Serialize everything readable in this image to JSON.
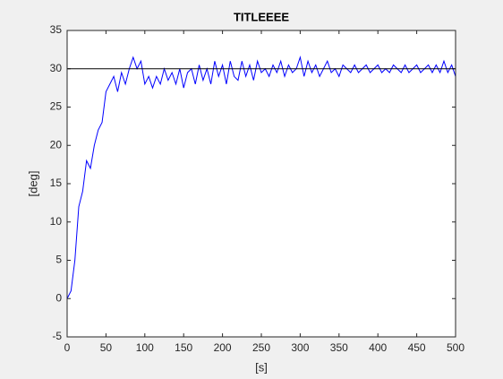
{
  "chart_data": {
    "type": "line",
    "title": "TITLEEEE",
    "x_label": "[s]",
    "y_label": "[deg]",
    "xlim": [
      0,
      500
    ],
    "xticks": [
      0,
      50,
      100,
      150,
      200,
      250,
      300,
      350,
      400,
      450,
      500
    ],
    "ylim": [
      -5,
      35
    ],
    "yticks": [
      -5,
      0,
      5,
      10,
      15,
      20,
      25,
      30,
      35
    ],
    "grid": false,
    "series": [
      {
        "color": "#0000ff",
        "x": [
          0,
          5,
          10,
          15,
          20,
          25,
          30,
          35,
          40,
          45,
          50,
          55,
          60,
          65,
          70,
          75,
          80,
          85,
          90,
          95,
          100,
          105,
          110,
          115,
          120,
          125,
          130,
          135,
          140,
          145,
          150,
          155,
          160,
          165,
          170,
          175,
          180,
          185,
          190,
          195,
          200,
          205,
          210,
          215,
          220,
          225,
          230,
          235,
          240,
          245,
          250,
          255,
          260,
          265,
          270,
          275,
          280,
          285,
          290,
          295,
          300,
          305,
          310,
          315,
          320,
          325,
          330,
          335,
          340,
          345,
          350,
          355,
          360,
          365,
          370,
          375,
          380,
          385,
          390,
          395,
          400,
          405,
          410,
          415,
          420,
          425,
          430,
          435,
          440,
          445,
          450,
          455,
          460,
          465,
          470,
          475,
          480,
          485,
          490,
          495,
          500
        ],
        "values": [
          0,
          1,
          5,
          12,
          14,
          18,
          17,
          20,
          22,
          23,
          27,
          28,
          29,
          27,
          29.5,
          28,
          30,
          31.5,
          30,
          31,
          28,
          29,
          27.5,
          29,
          28,
          30,
          28.5,
          29.5,
          28,
          30,
          27.5,
          29.5,
          30,
          28,
          30.5,
          28.5,
          30,
          28,
          31,
          29,
          30.5,
          28,
          31,
          29,
          28.5,
          31,
          29,
          30.5,
          28.5,
          31,
          29.5,
          30,
          29,
          30.5,
          29.5,
          31,
          29,
          30.5,
          29.5,
          30,
          31.5,
          29,
          31,
          29.5,
          30.5,
          29,
          30,
          31,
          29.5,
          30,
          29,
          30.5,
          30,
          29.5,
          30.5,
          29.5,
          30,
          30.5,
          29.5,
          30,
          30.5,
          29.5,
          30,
          29.5,
          30.5,
          30,
          29.5,
          30.5,
          29.5,
          30,
          30.5,
          29.5,
          30,
          30.5,
          29.5,
          30.5,
          29.5,
          31,
          29.5,
          30.5,
          29
        ]
      },
      {
        "color": "#000000",
        "x": [
          0,
          500
        ],
        "values": [
          30,
          30
        ]
      }
    ]
  }
}
